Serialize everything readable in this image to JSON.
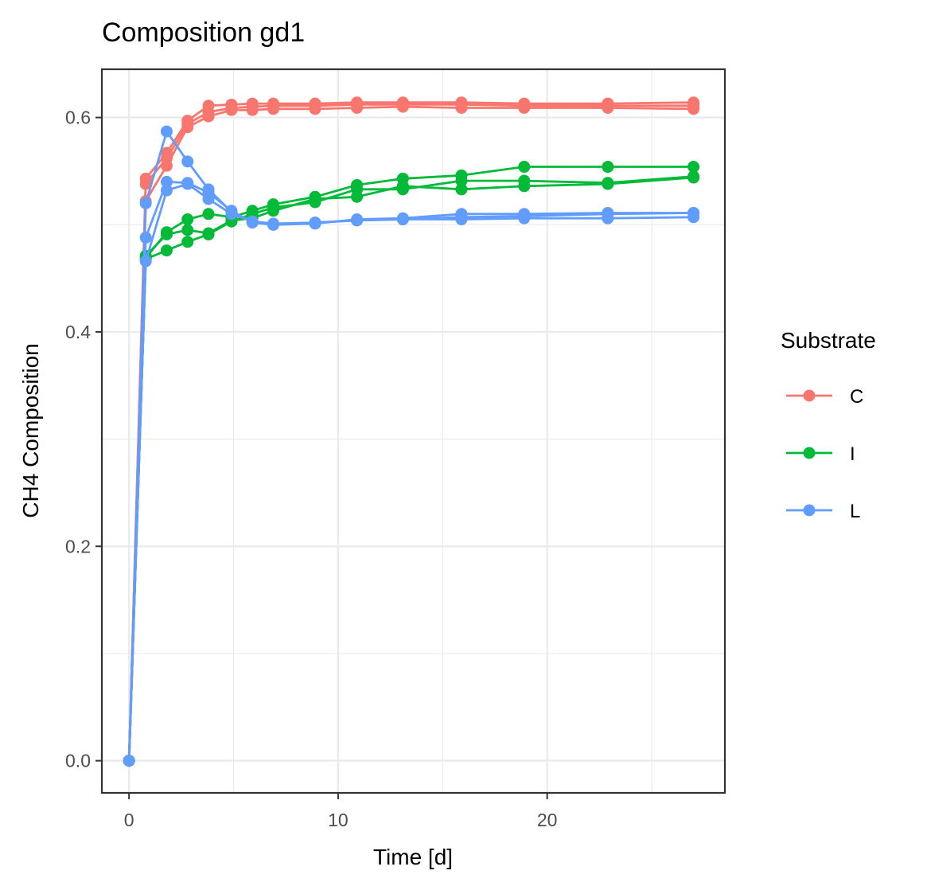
{
  "chart_data": {
    "type": "line",
    "title": "Composition gd1",
    "xlabel": "Time [d]",
    "ylabel": "CH4 Composition",
    "xlim": [
      -1.3,
      28.5
    ],
    "ylim": [
      -0.03,
      0.645
    ],
    "x_ticks": [
      0,
      10,
      20
    ],
    "x_tick_labels": [
      "0",
      "10",
      "20"
    ],
    "x_minor": [
      5,
      15,
      25
    ],
    "y_ticks": [
      0.0,
      0.2,
      0.4,
      0.6
    ],
    "y_tick_labels": [
      "0.0",
      "0.2",
      "0.4",
      "0.6"
    ],
    "y_minor": [
      0.1,
      0.3,
      0.5
    ],
    "grid": true,
    "legend": {
      "title": "Substrate",
      "position": "right",
      "entries": [
        "C",
        "I",
        "L"
      ]
    },
    "series": [
      {
        "name": "C",
        "color": "#F8766D",
        "x": [
          0,
          0.8,
          1.8,
          2.8,
          3.8,
          4.9,
          5.9,
          6.9,
          8.9,
          10.9,
          13.1,
          15.9,
          18.9,
          22.9,
          27
        ],
        "y": [
          0,
          0.543,
          0.567,
          0.597,
          0.611,
          0.612,
          0.613,
          0.613,
          0.613,
          0.614,
          0.614,
          0.614,
          0.613,
          0.613,
          0.614
        ]
      },
      {
        "name": "C",
        "color": "#F8766D",
        "x": [
          0,
          0.8,
          1.8,
          2.8,
          3.8,
          4.9,
          5.9,
          6.9,
          8.9,
          10.9,
          13.1,
          15.9,
          18.9,
          22.9,
          27
        ],
        "y": [
          0,
          0.538,
          0.562,
          0.594,
          0.605,
          0.609,
          0.61,
          0.611,
          0.611,
          0.612,
          0.612,
          0.612,
          0.611,
          0.611,
          0.611
        ]
      },
      {
        "name": "C",
        "color": "#F8766D",
        "x": [
          0,
          0.8,
          1.8,
          2.8,
          3.8,
          4.9,
          5.9,
          6.9,
          8.9,
          10.9,
          13.1,
          15.9,
          18.9,
          22.9,
          27
        ],
        "y": [
          0,
          0.522,
          0.555,
          0.591,
          0.601,
          0.607,
          0.607,
          0.608,
          0.608,
          0.609,
          0.61,
          0.609,
          0.609,
          0.609,
          0.608
        ]
      },
      {
        "name": "I",
        "color": "#00BA38",
        "x": [
          0,
          0.8,
          1.8,
          2.8,
          3.8,
          4.9,
          5.9,
          6.9,
          8.9,
          10.9,
          13.1,
          15.9,
          18.9,
          22.9,
          27
        ],
        "y": [
          0,
          0.469,
          0.493,
          0.505,
          0.51,
          0.507,
          0.513,
          0.519,
          0.526,
          0.537,
          0.543,
          0.546,
          0.554,
          0.554,
          0.554
        ]
      },
      {
        "name": "I",
        "color": "#00BA38",
        "x": [
          0,
          0.8,
          1.8,
          2.8,
          3.8,
          4.9,
          5.9,
          6.9,
          8.9,
          10.9,
          13.1,
          15.9,
          18.9,
          22.9,
          27
        ],
        "y": [
          0,
          0.468,
          0.476,
          0.484,
          0.491,
          0.503,
          0.51,
          0.516,
          0.521,
          0.533,
          0.533,
          0.541,
          0.541,
          0.539,
          0.545
        ]
      },
      {
        "name": "I",
        "color": "#00BA38",
        "x": [
          0,
          0.8,
          1.8,
          2.8,
          3.8,
          4.9,
          5.9,
          6.9,
          8.9,
          10.9,
          13.1,
          15.9,
          18.9,
          22.9,
          27
        ],
        "y": [
          0,
          0.471,
          0.491,
          0.495,
          0.492,
          0.504,
          0.506,
          0.513,
          0.524,
          0.526,
          0.536,
          0.533,
          0.536,
          0.538,
          0.544
        ]
      },
      {
        "name": "L",
        "color": "#619CFF",
        "x": [
          0,
          0.8,
          1.8,
          2.8,
          3.8,
          4.9,
          5.9,
          6.9,
          8.9,
          10.9,
          13.1,
          15.9,
          18.9,
          22.9,
          27
        ],
        "y": [
          0,
          0.52,
          0.587,
          0.559,
          0.533,
          0.512,
          0.503,
          0.5,
          0.502,
          0.504,
          0.505,
          0.507,
          0.508,
          0.51,
          0.511
        ]
      },
      {
        "name": "L",
        "color": "#619CFF",
        "x": [
          0,
          0.8,
          1.8,
          2.8,
          3.8,
          4.9,
          5.9,
          6.9,
          8.9,
          10.9,
          13.1,
          15.9,
          18.9,
          22.9,
          27
        ],
        "y": [
          0,
          0.488,
          0.54,
          0.539,
          0.53,
          0.513,
          0.502,
          0.5,
          0.501,
          0.505,
          0.506,
          0.51,
          0.51,
          0.511,
          0.511
        ]
      },
      {
        "name": "L",
        "color": "#619CFF",
        "x": [
          0,
          0.8,
          1.8,
          2.8,
          3.8,
          4.9,
          5.9,
          6.9,
          8.9,
          10.9,
          13.1,
          15.9,
          18.9,
          22.9,
          27
        ],
        "y": [
          0,
          0.466,
          0.532,
          0.538,
          0.524,
          0.51,
          0.503,
          0.501,
          0.502,
          0.504,
          0.505,
          0.505,
          0.506,
          0.506,
          0.507
        ]
      }
    ]
  }
}
